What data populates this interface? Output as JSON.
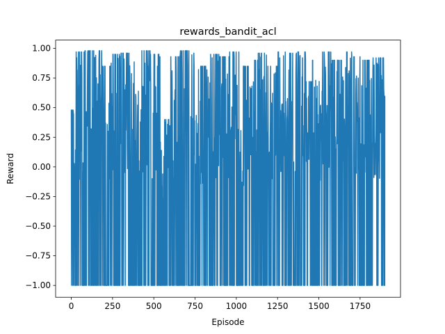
{
  "chart_data": {
    "type": "line",
    "title": "rewards_bandit_acl",
    "xlabel": "Episode",
    "ylabel": "Reward",
    "xlim": [
      -95,
      1995
    ],
    "ylim": [
      -1.1,
      1.07
    ],
    "xticks": [
      0,
      250,
      500,
      750,
      1000,
      1250,
      1500,
      1750
    ],
    "xtick_labels": [
      "0",
      "250",
      "500",
      "750",
      "1000",
      "1250",
      "1500",
      "1750"
    ],
    "yticks": [
      -1.0,
      -0.75,
      -0.5,
      -0.25,
      0.0,
      0.25,
      0.5,
      0.75,
      1.0
    ],
    "ytick_labels": [
      "−1.00",
      "−0.75",
      "−0.50",
      "−0.25",
      "0.00",
      "0.25",
      "0.50",
      "0.75",
      "1.00"
    ],
    "grid": false,
    "legend": "none",
    "series": [
      {
        "color": "#1f77b4",
        "x": [
          0,
          1900
        ],
        "y": [
          0.47,
          0.6
        ]
      }
    ],
    "segments": [
      {
        "x0": 0,
        "x1": 25,
        "ymin": -1.0,
        "ymax": 0.48
      },
      {
        "x0": 25,
        "x1": 80,
        "ymin": -1.0,
        "ymax": 0.97
      },
      {
        "x0": 80,
        "x1": 130,
        "ymin": -1.0,
        "ymax": 0.98
      },
      {
        "x0": 130,
        "x1": 185,
        "ymin": -1.0,
        "ymax": 0.98
      },
      {
        "x0": 185,
        "x1": 240,
        "ymin": -1.0,
        "ymax": 0.85
      },
      {
        "x0": 240,
        "x1": 300,
        "ymin": -1.0,
        "ymax": 0.95
      },
      {
        "x0": 300,
        "x1": 360,
        "ymin": -1.0,
        "ymax": 0.96
      },
      {
        "x0": 360,
        "x1": 420,
        "ymin": -1.0,
        "ymax": 0.92
      },
      {
        "x0": 420,
        "x1": 480,
        "ymin": -1.0,
        "ymax": 0.98
      },
      {
        "x0": 480,
        "x1": 540,
        "ymin": -1.0,
        "ymax": 0.95
      },
      {
        "x0": 540,
        "x1": 600,
        "ymin": -1.0,
        "ymax": 0.4
      },
      {
        "x0": 600,
        "x1": 660,
        "ymin": -1.0,
        "ymax": 0.93
      },
      {
        "x0": 660,
        "x1": 720,
        "ymin": -1.0,
        "ymax": 0.98
      },
      {
        "x0": 720,
        "x1": 780,
        "ymin": -1.0,
        "ymax": 0.96
      },
      {
        "x0": 780,
        "x1": 840,
        "ymin": -1.0,
        "ymax": 0.85
      },
      {
        "x0": 840,
        "x1": 900,
        "ymin": -1.0,
        "ymax": 0.95
      },
      {
        "x0": 900,
        "x1": 960,
        "ymin": -1.0,
        "ymax": 0.93
      },
      {
        "x0": 960,
        "x1": 1020,
        "ymin": -1.0,
        "ymax": 0.97
      },
      {
        "x0": 1020,
        "x1": 1075,
        "ymin": -1.0,
        "ymax": 0.85
      },
      {
        "x0": 1075,
        "x1": 1130,
        "ymin": -1.0,
        "ymax": 0.9
      },
      {
        "x0": 1130,
        "x1": 1190,
        "ymin": -1.0,
        "ymax": 0.96
      },
      {
        "x0": 1190,
        "x1": 1250,
        "ymin": -1.0,
        "ymax": 0.85
      },
      {
        "x0": 1250,
        "x1": 1310,
        "ymin": -1.0,
        "ymax": 0.97
      },
      {
        "x0": 1310,
        "x1": 1370,
        "ymin": -1.0,
        "ymax": 0.96
      },
      {
        "x0": 1370,
        "x1": 1420,
        "ymin": -1.0,
        "ymax": 0.97
      },
      {
        "x0": 1420,
        "x1": 1460,
        "ymin": -1.0,
        "ymax": 0.72
      },
      {
        "x0": 1460,
        "x1": 1520,
        "ymin": -1.0,
        "ymax": 0.9
      },
      {
        "x0": 1520,
        "x1": 1580,
        "ymin": -1.0,
        "ymax": 0.97
      },
      {
        "x0": 1580,
        "x1": 1640,
        "ymin": -1.0,
        "ymax": 0.9
      },
      {
        "x0": 1640,
        "x1": 1700,
        "ymin": -1.0,
        "ymax": 0.97
      },
      {
        "x0": 1700,
        "x1": 1760,
        "ymin": -1.0,
        "ymax": 0.93
      },
      {
        "x0": 1760,
        "x1": 1820,
        "ymin": -1.0,
        "ymax": 0.9
      },
      {
        "x0": 1820,
        "x1": 1900,
        "ymin": -1.0,
        "ymax": 0.92
      }
    ]
  }
}
